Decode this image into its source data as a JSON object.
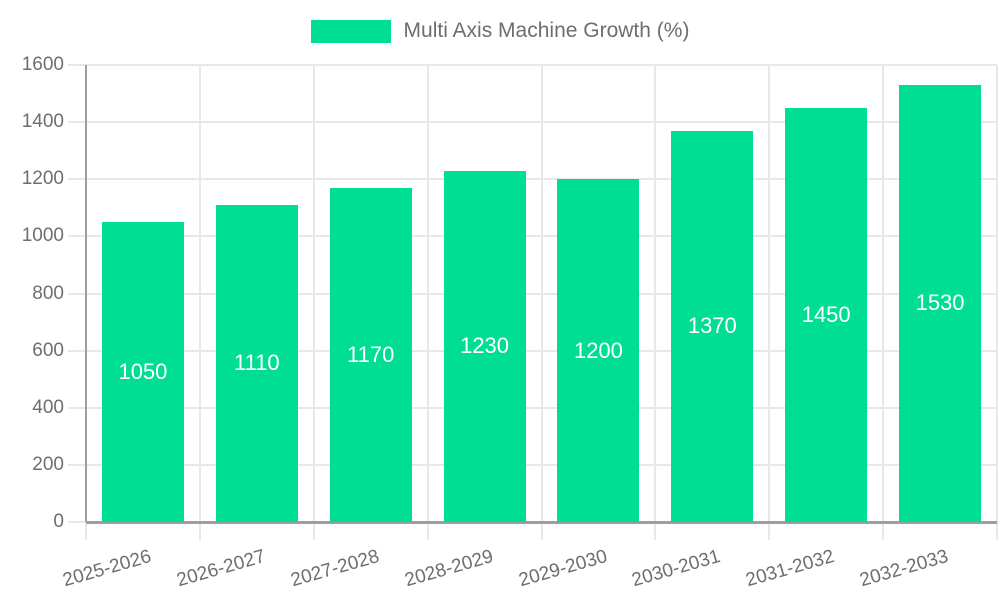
{
  "legend": {
    "label": "Multi Axis Machine Growth (%)"
  },
  "chart_data": {
    "type": "bar",
    "title": "Multi Axis Machine Growth (%)",
    "categories": [
      "2025-2026",
      "2026-2027",
      "2027-2028",
      "2028-2029",
      "2029-2030",
      "2030-2031",
      "2031-2032",
      "2032-2033"
    ],
    "values": [
      1050,
      1110,
      1170,
      1230,
      1200,
      1370,
      1450,
      1530
    ],
    "xlabel": "",
    "ylabel": "",
    "ylim": [
      0,
      1600
    ],
    "ytick_step": 200,
    "yticks": [
      0,
      200,
      400,
      600,
      800,
      1000,
      1200,
      1400,
      1600
    ],
    "grid": true,
    "legend_position": "top",
    "value_labels": "centered-inside-bars",
    "colors": {
      "bar": "#00DE93",
      "value_label": "#FFFFFF",
      "axis_text": "#6E6E6E",
      "grid_line": "#E8E8E8",
      "axis_line": "#9E9E9E",
      "background": "#FFFFFF"
    }
  }
}
